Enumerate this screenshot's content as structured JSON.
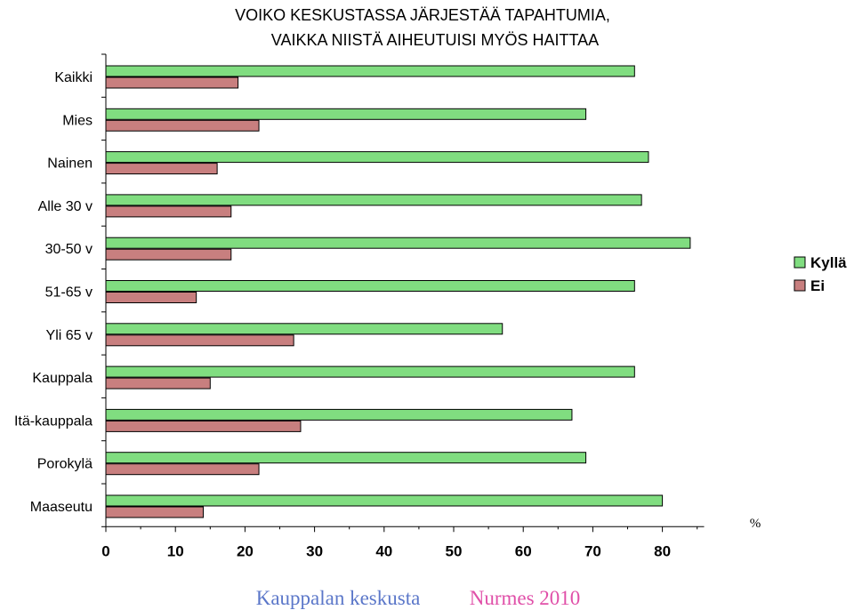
{
  "chart_data": {
    "type": "bar",
    "orientation": "horizontal",
    "title": [
      "VOIKO KESKUSTASSA JÄRJESTÄÄ TAPAHTUMIA,",
      "VAIKKA NIISTÄ AIHEUTUISI MYÖS HAITTAA"
    ],
    "categories": [
      "Kaikki",
      "Mies",
      "Nainen",
      "Alle 30 v",
      "30-50 v",
      "51-65 v",
      "Yli 65 v",
      "Kauppala",
      "Itä-kauppala",
      "Porokylä",
      "Maaseutu"
    ],
    "series": [
      {
        "name": "Kyllä",
        "color": "#80dd80",
        "values": [
          76,
          69,
          78,
          77,
          84,
          76,
          57,
          76,
          67,
          69,
          80
        ]
      },
      {
        "name": "Ei",
        "color": "#c87f7f",
        "values": [
          19,
          22,
          16,
          18,
          18,
          13,
          27,
          15,
          28,
          22,
          14
        ]
      }
    ],
    "x_ticks": [
      "0",
      "10",
      "20",
      "30",
      "40",
      "50",
      "60",
      "70",
      "80"
    ],
    "xlim": [
      0,
      86
    ],
    "unit_label": "%",
    "legend_position": "right",
    "grid": false
  },
  "footer": {
    "left": {
      "text": "Kauppalan keskusta",
      "color": "#5b77c9"
    },
    "right": {
      "text": "Nurmes 2010",
      "color": "#e04fa8"
    }
  }
}
